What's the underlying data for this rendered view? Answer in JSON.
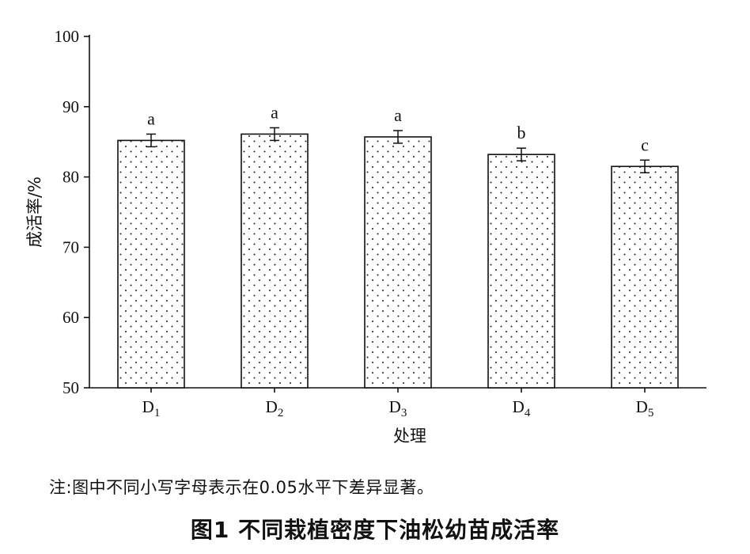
{
  "chart_data": {
    "type": "bar",
    "categories": [
      "D1",
      "D2",
      "D3",
      "D4",
      "D5"
    ],
    "category_labels": [
      {
        "base": "D",
        "sub": "1"
      },
      {
        "base": "D",
        "sub": "2"
      },
      {
        "base": "D",
        "sub": "3"
      },
      {
        "base": "D",
        "sub": "4"
      },
      {
        "base": "D",
        "sub": "5"
      }
    ],
    "values": [
      85.2,
      86.1,
      85.7,
      83.2,
      81.5
    ],
    "errors": [
      0.9,
      0.9,
      0.9,
      0.9,
      0.9
    ],
    "significance": [
      "a",
      "a",
      "a",
      "b",
      "c"
    ],
    "ylim": [
      50,
      100
    ],
    "yticks": [
      50,
      60,
      70,
      80,
      90,
      100
    ],
    "ylabel": "成活率/%",
    "xlabel": "处理",
    "bar_fill": "dotted",
    "grid": false
  },
  "note": "注:图中不同小写字母表示在0.05水平下差异显著。",
  "caption": "图1    不同栽植密度下油松幼苗成活率"
}
